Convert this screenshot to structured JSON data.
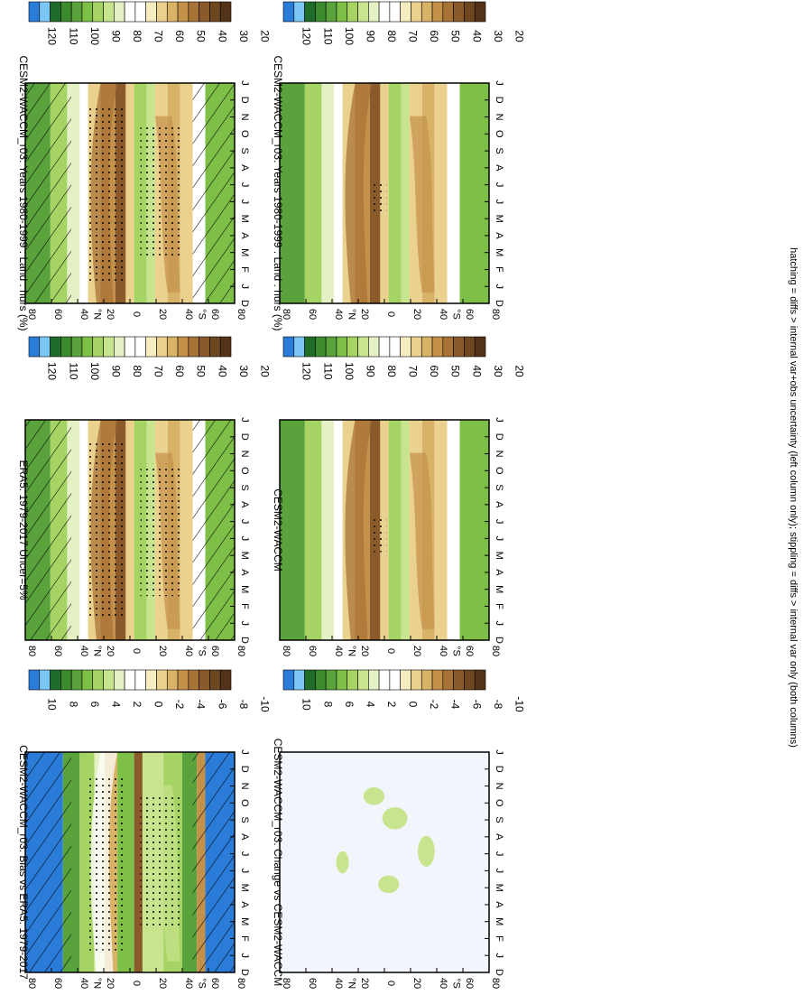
{
  "footer_note": "hatching = diffs > internal var+obs uncertainty (left column only); stippling = diffs > internal var only (both columns)",
  "lat_ticks": [
    "80",
    "60",
    "40",
    "20",
    "0",
    "20",
    "40",
    "60",
    "80"
  ],
  "lat_tick_values": [
    80,
    60,
    40,
    20,
    0,
    -20,
    -40,
    -60,
    -80
  ],
  "lat_hemi_labels": [
    "°N",
    "°S"
  ],
  "month_ticks": [
    "D",
    "J",
    "F",
    "M",
    "A",
    "M",
    "J",
    "J",
    "A",
    "S",
    "O",
    "N",
    "D",
    "J"
  ],
  "scale_abs": {
    "labels": [
      "120",
      "110",
      "100",
      "90",
      "80",
      "70",
      "60",
      "50",
      "40",
      "30",
      "20"
    ],
    "colors": [
      "#2b7bd8",
      "#7cc6f5",
      "#1e6b2a",
      "#3b8a2e",
      "#5aa33c",
      "#7ebf47",
      "#a6d464",
      "#c8e48f",
      "#e4f1c4",
      "#ffffff",
      "#ffffff",
      "#f5edc0",
      "#ead18e",
      "#d8b266",
      "#c4914a",
      "#a87336",
      "#8a5a2a",
      "#6e4620",
      "#533318"
    ]
  },
  "scale_diff": {
    "labels": [
      "10",
      "8",
      "6",
      "4",
      "2",
      "0",
      "-2",
      "-4",
      "-6",
      "-8",
      "-10"
    ],
    "colors": [
      "#2b7bd8",
      "#7cc6f5",
      "#1e6b2a",
      "#3b8a2e",
      "#5aa33c",
      "#7ebf47",
      "#a6d464",
      "#c8e48f",
      "#e4f1c4",
      "#ffffff",
      "#ffffff",
      "#f5edc0",
      "#ead18e",
      "#d8b266",
      "#c4914a",
      "#a87336",
      "#8a5a2a",
      "#6e4620",
      "#533318"
    ]
  },
  "panels": [
    {
      "title": "CESM2-WACCM_r03: Years 1980-1999 : Land : hurs (%)",
      "scale": "abs",
      "kind": "model",
      "hatch": true
    },
    {
      "title": "CESM2-WACCM_r03: Years 1980-1999 : Land : hurs (%)",
      "scale": "abs",
      "kind": "model",
      "hatch": false
    },
    {
      "title": "ERA5: 1979-2017 Uncer=5%",
      "scale": "abs",
      "kind": "obs",
      "hatch": true
    },
    {
      "title": "CESM2-WACCM",
      "scale": "abs",
      "kind": "model",
      "hatch": false
    },
    {
      "title": "CESM2-WACCM_r03: Bias vs ERA5: 1979-2017",
      "scale": "diff",
      "kind": "bias",
      "hatch": true
    },
    {
      "title": "CESM2-WACCM_r03: Change vs CESM2-WACCM",
      "scale": "diff",
      "kind": "change",
      "hatch": false
    }
  ],
  "chart_data": {
    "type": "heatmap",
    "x_axis": "month (Dec to Jan, 14 ticks)",
    "y_axis": "latitude (80°N to 80°S)",
    "abs_colorbar_levels": [
      120,
      110,
      100,
      90,
      80,
      70,
      60,
      50,
      40,
      30,
      20
    ],
    "diff_colorbar_levels": [
      10,
      8,
      6,
      4,
      2,
      0,
      -2,
      -4,
      -6,
      -8,
      -10
    ]
  }
}
